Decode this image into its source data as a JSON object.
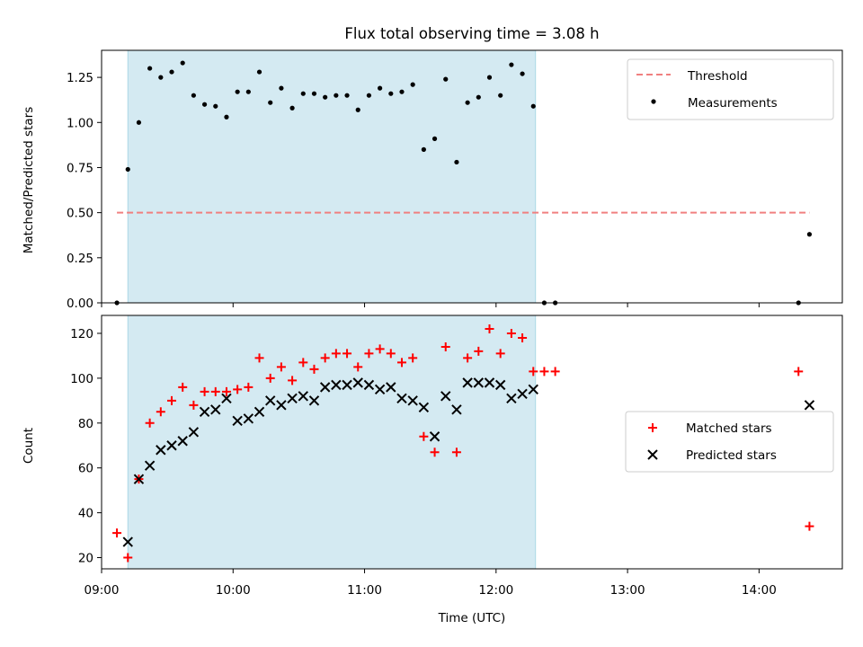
{
  "chart_data": [
    {
      "type": "scatter",
      "title": "Flux total observing time = 3.08 h",
      "xlabel": "",
      "ylabel": "Matched/Predicted stars",
      "xlim": [
        "09:00",
        "14:38"
      ],
      "ylim": [
        0,
        1.4
      ],
      "yticks": [
        0.0,
        0.25,
        0.5,
        0.75,
        1.0,
        1.25
      ],
      "ytick_labels": [
        "0.00",
        "0.25",
        "0.50",
        "0.75",
        "1.00",
        "1.25"
      ],
      "shaded_interval": [
        "09:12",
        "12:18"
      ],
      "legend_position": "top-right",
      "series": [
        {
          "name": "Threshold",
          "kind": "dashed-line",
          "color": "#f08080",
          "x": [
            "09:07",
            "14:23"
          ],
          "y": [
            0.5,
            0.5
          ]
        },
        {
          "name": "Measurements",
          "kind": "dot",
          "color": "#000000",
          "points": [
            [
              "09:07",
              0.0
            ],
            [
              "09:12",
              0.74
            ],
            [
              "09:17",
              1.0
            ],
            [
              "09:22",
              1.3
            ],
            [
              "09:27",
              1.25
            ],
            [
              "09:32",
              1.28
            ],
            [
              "09:37",
              1.33
            ],
            [
              "09:42",
              1.15
            ],
            [
              "09:47",
              1.1
            ],
            [
              "09:52",
              1.09
            ],
            [
              "09:57",
              1.03
            ],
            [
              "10:02",
              1.17
            ],
            [
              "10:07",
              1.17
            ],
            [
              "10:12",
              1.28
            ],
            [
              "10:17",
              1.11
            ],
            [
              "10:22",
              1.19
            ],
            [
              "10:27",
              1.08
            ],
            [
              "10:32",
              1.16
            ],
            [
              "10:37",
              1.16
            ],
            [
              "10:42",
              1.14
            ],
            [
              "10:47",
              1.15
            ],
            [
              "10:52",
              1.15
            ],
            [
              "10:57",
              1.07
            ],
            [
              "11:02",
              1.15
            ],
            [
              "11:07",
              1.19
            ],
            [
              "11:12",
              1.16
            ],
            [
              "11:17",
              1.17
            ],
            [
              "11:22",
              1.21
            ],
            [
              "11:27",
              0.85
            ],
            [
              "11:32",
              0.91
            ],
            [
              "11:37",
              1.24
            ],
            [
              "11:42",
              0.78
            ],
            [
              "11:47",
              1.11
            ],
            [
              "11:52",
              1.14
            ],
            [
              "11:57",
              1.25
            ],
            [
              "12:02",
              1.15
            ],
            [
              "12:07",
              1.32
            ],
            [
              "12:12",
              1.27
            ],
            [
              "12:17",
              1.09
            ],
            [
              "12:22",
              0.0
            ],
            [
              "12:27",
              0.0
            ],
            [
              "14:18",
              0.0
            ],
            [
              "14:23",
              0.38
            ]
          ]
        }
      ]
    },
    {
      "type": "scatter",
      "title": "",
      "xlabel": "Time (UTC)",
      "ylabel": "Count",
      "xlim": [
        "09:00",
        "14:38"
      ],
      "ylim": [
        15,
        128
      ],
      "xticks": [
        "09:00",
        "10:00",
        "11:00",
        "12:00",
        "13:00",
        "14:00"
      ],
      "yticks": [
        20,
        40,
        60,
        80,
        100,
        120
      ],
      "shaded_interval": [
        "09:12",
        "12:18"
      ],
      "legend_position": "center-right",
      "series": [
        {
          "name": "Matched stars",
          "kind": "plus",
          "color": "#ff0000",
          "points": [
            [
              "09:07",
              31
            ],
            [
              "09:12",
              20
            ],
            [
              "09:17",
              55
            ],
            [
              "09:22",
              80
            ],
            [
              "09:27",
              85
            ],
            [
              "09:32",
              90
            ],
            [
              "09:37",
              96
            ],
            [
              "09:42",
              88
            ],
            [
              "09:47",
              94
            ],
            [
              "09:52",
              94
            ],
            [
              "09:57",
              94
            ],
            [
              "10:02",
              95
            ],
            [
              "10:07",
              96
            ],
            [
              "10:12",
              109
            ],
            [
              "10:17",
              100
            ],
            [
              "10:22",
              105
            ],
            [
              "10:27",
              99
            ],
            [
              "10:32",
              107
            ],
            [
              "10:37",
              104
            ],
            [
              "10:42",
              109
            ],
            [
              "10:47",
              111
            ],
            [
              "10:52",
              111
            ],
            [
              "10:57",
              105
            ],
            [
              "11:02",
              111
            ],
            [
              "11:07",
              113
            ],
            [
              "11:12",
              111
            ],
            [
              "11:17",
              107
            ],
            [
              "11:22",
              109
            ],
            [
              "11:27",
              74
            ],
            [
              "11:32",
              67
            ],
            [
              "11:37",
              114
            ],
            [
              "11:42",
              67
            ],
            [
              "11:47",
              109
            ],
            [
              "11:52",
              112
            ],
            [
              "11:57",
              122
            ],
            [
              "12:02",
              111
            ],
            [
              "12:07",
              120
            ],
            [
              "12:12",
              118
            ],
            [
              "12:17",
              103
            ],
            [
              "12:22",
              103
            ],
            [
              "12:27",
              103
            ],
            [
              "14:18",
              103
            ],
            [
              "14:23",
              34
            ]
          ]
        },
        {
          "name": "Predicted stars",
          "kind": "cross",
          "color": "#000000",
          "points": [
            [
              "09:12",
              27
            ],
            [
              "09:17",
              55
            ],
            [
              "09:22",
              61
            ],
            [
              "09:27",
              68
            ],
            [
              "09:32",
              70
            ],
            [
              "09:37",
              72
            ],
            [
              "09:42",
              76
            ],
            [
              "09:47",
              85
            ],
            [
              "09:52",
              86
            ],
            [
              "09:57",
              91
            ],
            [
              "10:02",
              81
            ],
            [
              "10:07",
              82
            ],
            [
              "10:12",
              85
            ],
            [
              "10:17",
              90
            ],
            [
              "10:22",
              88
            ],
            [
              "10:27",
              91
            ],
            [
              "10:32",
              92
            ],
            [
              "10:37",
              90
            ],
            [
              "10:42",
              96
            ],
            [
              "10:47",
              97
            ],
            [
              "10:52",
              97
            ],
            [
              "10:57",
              98
            ],
            [
              "11:02",
              97
            ],
            [
              "11:07",
              95
            ],
            [
              "11:12",
              96
            ],
            [
              "11:17",
              91
            ],
            [
              "11:22",
              90
            ],
            [
              "11:27",
              87
            ],
            [
              "11:32",
              74
            ],
            [
              "11:37",
              92
            ],
            [
              "11:42",
              86
            ],
            [
              "11:47",
              98
            ],
            [
              "11:52",
              98
            ],
            [
              "11:57",
              98
            ],
            [
              "12:02",
              97
            ],
            [
              "12:07",
              91
            ],
            [
              "12:12",
              93
            ],
            [
              "12:17",
              95
            ],
            [
              "14:23",
              88
            ]
          ]
        }
      ]
    }
  ]
}
